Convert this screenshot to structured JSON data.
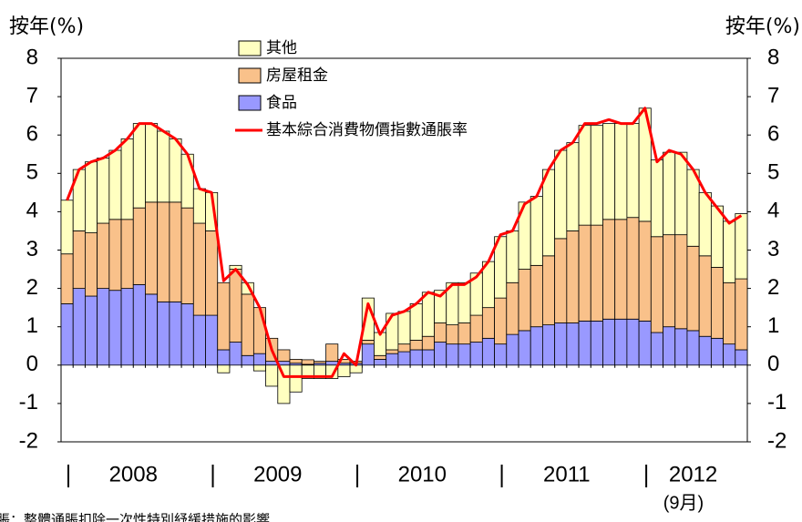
{
  "chart_data": {
    "type": "stacked_bar_line",
    "y_axis_label": "按年(%)",
    "y2_axis_label": "按年(%)",
    "year_labels": [
      "2008",
      "2009",
      "2010",
      "2011",
      "2012"
    ],
    "annotation": "(9月)",
    "note": "脹：整體通脹扣除一次性特別紓緩措施的影響",
    "categories": [
      null,
      null,
      null,
      null,
      null,
      null,
      null,
      null,
      null,
      null,
      null,
      null,
      null,
      null,
      null,
      null,
      null,
      null,
      null,
      null,
      null,
      null,
      null,
      null,
      null,
      null,
      null,
      null,
      null,
      null,
      null,
      null,
      null,
      null,
      null,
      null,
      null,
      null,
      null,
      null,
      null,
      null,
      null,
      null,
      null,
      null,
      null,
      null,
      null,
      null,
      null,
      null,
      null,
      null,
      null,
      null,
      null
    ],
    "ylim": [
      -2,
      8
    ],
    "yticks": [
      -2,
      -1,
      0,
      1,
      2,
      3,
      4,
      5,
      6,
      7,
      8
    ],
    "y2lim": [
      -2,
      8
    ],
    "y2ticks": [
      -2,
      -1,
      0,
      1,
      2,
      3,
      4,
      5,
      6,
      7,
      8
    ],
    "series": [
      {
        "name": "其他",
        "color": "#ffffc0",
        "kind": "bar",
        "values": [
          1.4,
          1.6,
          1.85,
          1.7,
          1.8,
          2.1,
          2.2,
          2.05,
          1.85,
          1.65,
          1.4,
          0.9,
          1.0,
          -0.2,
          0.1,
          0.3,
          -0.15,
          -0.55,
          -1.0,
          -0.7,
          -0.35,
          -0.35,
          -0.35,
          -0.3,
          -0.2,
          1.1,
          0.6,
          0.95,
          0.85,
          0.95,
          1.15,
          0.85,
          1.1,
          1.05,
          1.1,
          1.2,
          1.6,
          1.35,
          1.75,
          1.8,
          2.25,
          2.3,
          2.3,
          2.6,
          2.6,
          2.5,
          2.5,
          2.45,
          2.95,
          2.0,
          2.15,
          2.15,
          2.0,
          1.65,
          1.6,
          1.6,
          1.7
        ]
      },
      {
        "name": "房屋租金",
        "color": "#f9c18a",
        "kind": "bar",
        "values": [
          1.3,
          1.5,
          1.65,
          1.7,
          1.85,
          1.8,
          2.0,
          2.4,
          2.6,
          2.6,
          2.5,
          2.4,
          2.2,
          1.75,
          1.9,
          1.6,
          1.2,
          0.6,
          0.3,
          0.1,
          0.12,
          0.05,
          0.45,
          0.1,
          0.05,
          0.1,
          0.1,
          0.1,
          0.2,
          0.25,
          0.35,
          0.5,
          0.5,
          0.55,
          0.7,
          0.8,
          1.2,
          1.35,
          1.6,
          1.6,
          1.8,
          2.2,
          2.4,
          2.5,
          2.5,
          2.6,
          2.6,
          2.65,
          2.6,
          2.5,
          2.4,
          2.45,
          2.2,
          2.1,
          1.85,
          1.6,
          1.85
        ]
      },
      {
        "name": "食品",
        "color": "#9999ff",
        "kind": "bar",
        "values": [
          1.6,
          2.0,
          1.8,
          2.0,
          1.95,
          2.0,
          2.1,
          1.85,
          1.65,
          1.65,
          1.6,
          1.3,
          1.3,
          0.4,
          0.6,
          0.25,
          0.3,
          0.1,
          0.1,
          0.05,
          0.02,
          0.05,
          0.1,
          0.05,
          0.05,
          0.55,
          0.15,
          0.3,
          0.35,
          0.4,
          0.4,
          0.6,
          0.55,
          0.55,
          0.6,
          0.7,
          0.55,
          0.8,
          0.9,
          1.0,
          1.05,
          1.1,
          1.1,
          1.15,
          1.15,
          1.2,
          1.2,
          1.2,
          1.15,
          0.85,
          1.0,
          0.95,
          0.9,
          0.75,
          0.7,
          0.55,
          0.4
        ]
      },
      {
        "name": "基本綜合消費物價指數通脹率",
        "color": "#ff0000",
        "kind": "line",
        "values": [
          4.3,
          5.1,
          5.3,
          5.4,
          5.6,
          5.9,
          6.3,
          6.3,
          6.1,
          5.9,
          5.5,
          4.6,
          4.5,
          2.2,
          2.5,
          2.1,
          1.5,
          0.4,
          -0.3,
          -0.3,
          -0.3,
          -0.3,
          -0.3,
          0.3,
          0.0,
          1.6,
          0.8,
          1.3,
          1.4,
          1.6,
          1.9,
          1.8,
          2.1,
          2.1,
          2.3,
          2.7,
          3.4,
          3.5,
          4.2,
          4.4,
          5.1,
          5.6,
          5.8,
          6.3,
          6.3,
          6.4,
          6.3,
          6.3,
          6.7,
          5.3,
          5.6,
          5.5,
          5.1,
          4.5,
          4.1,
          3.7,
          3.9
        ]
      }
    ]
  }
}
